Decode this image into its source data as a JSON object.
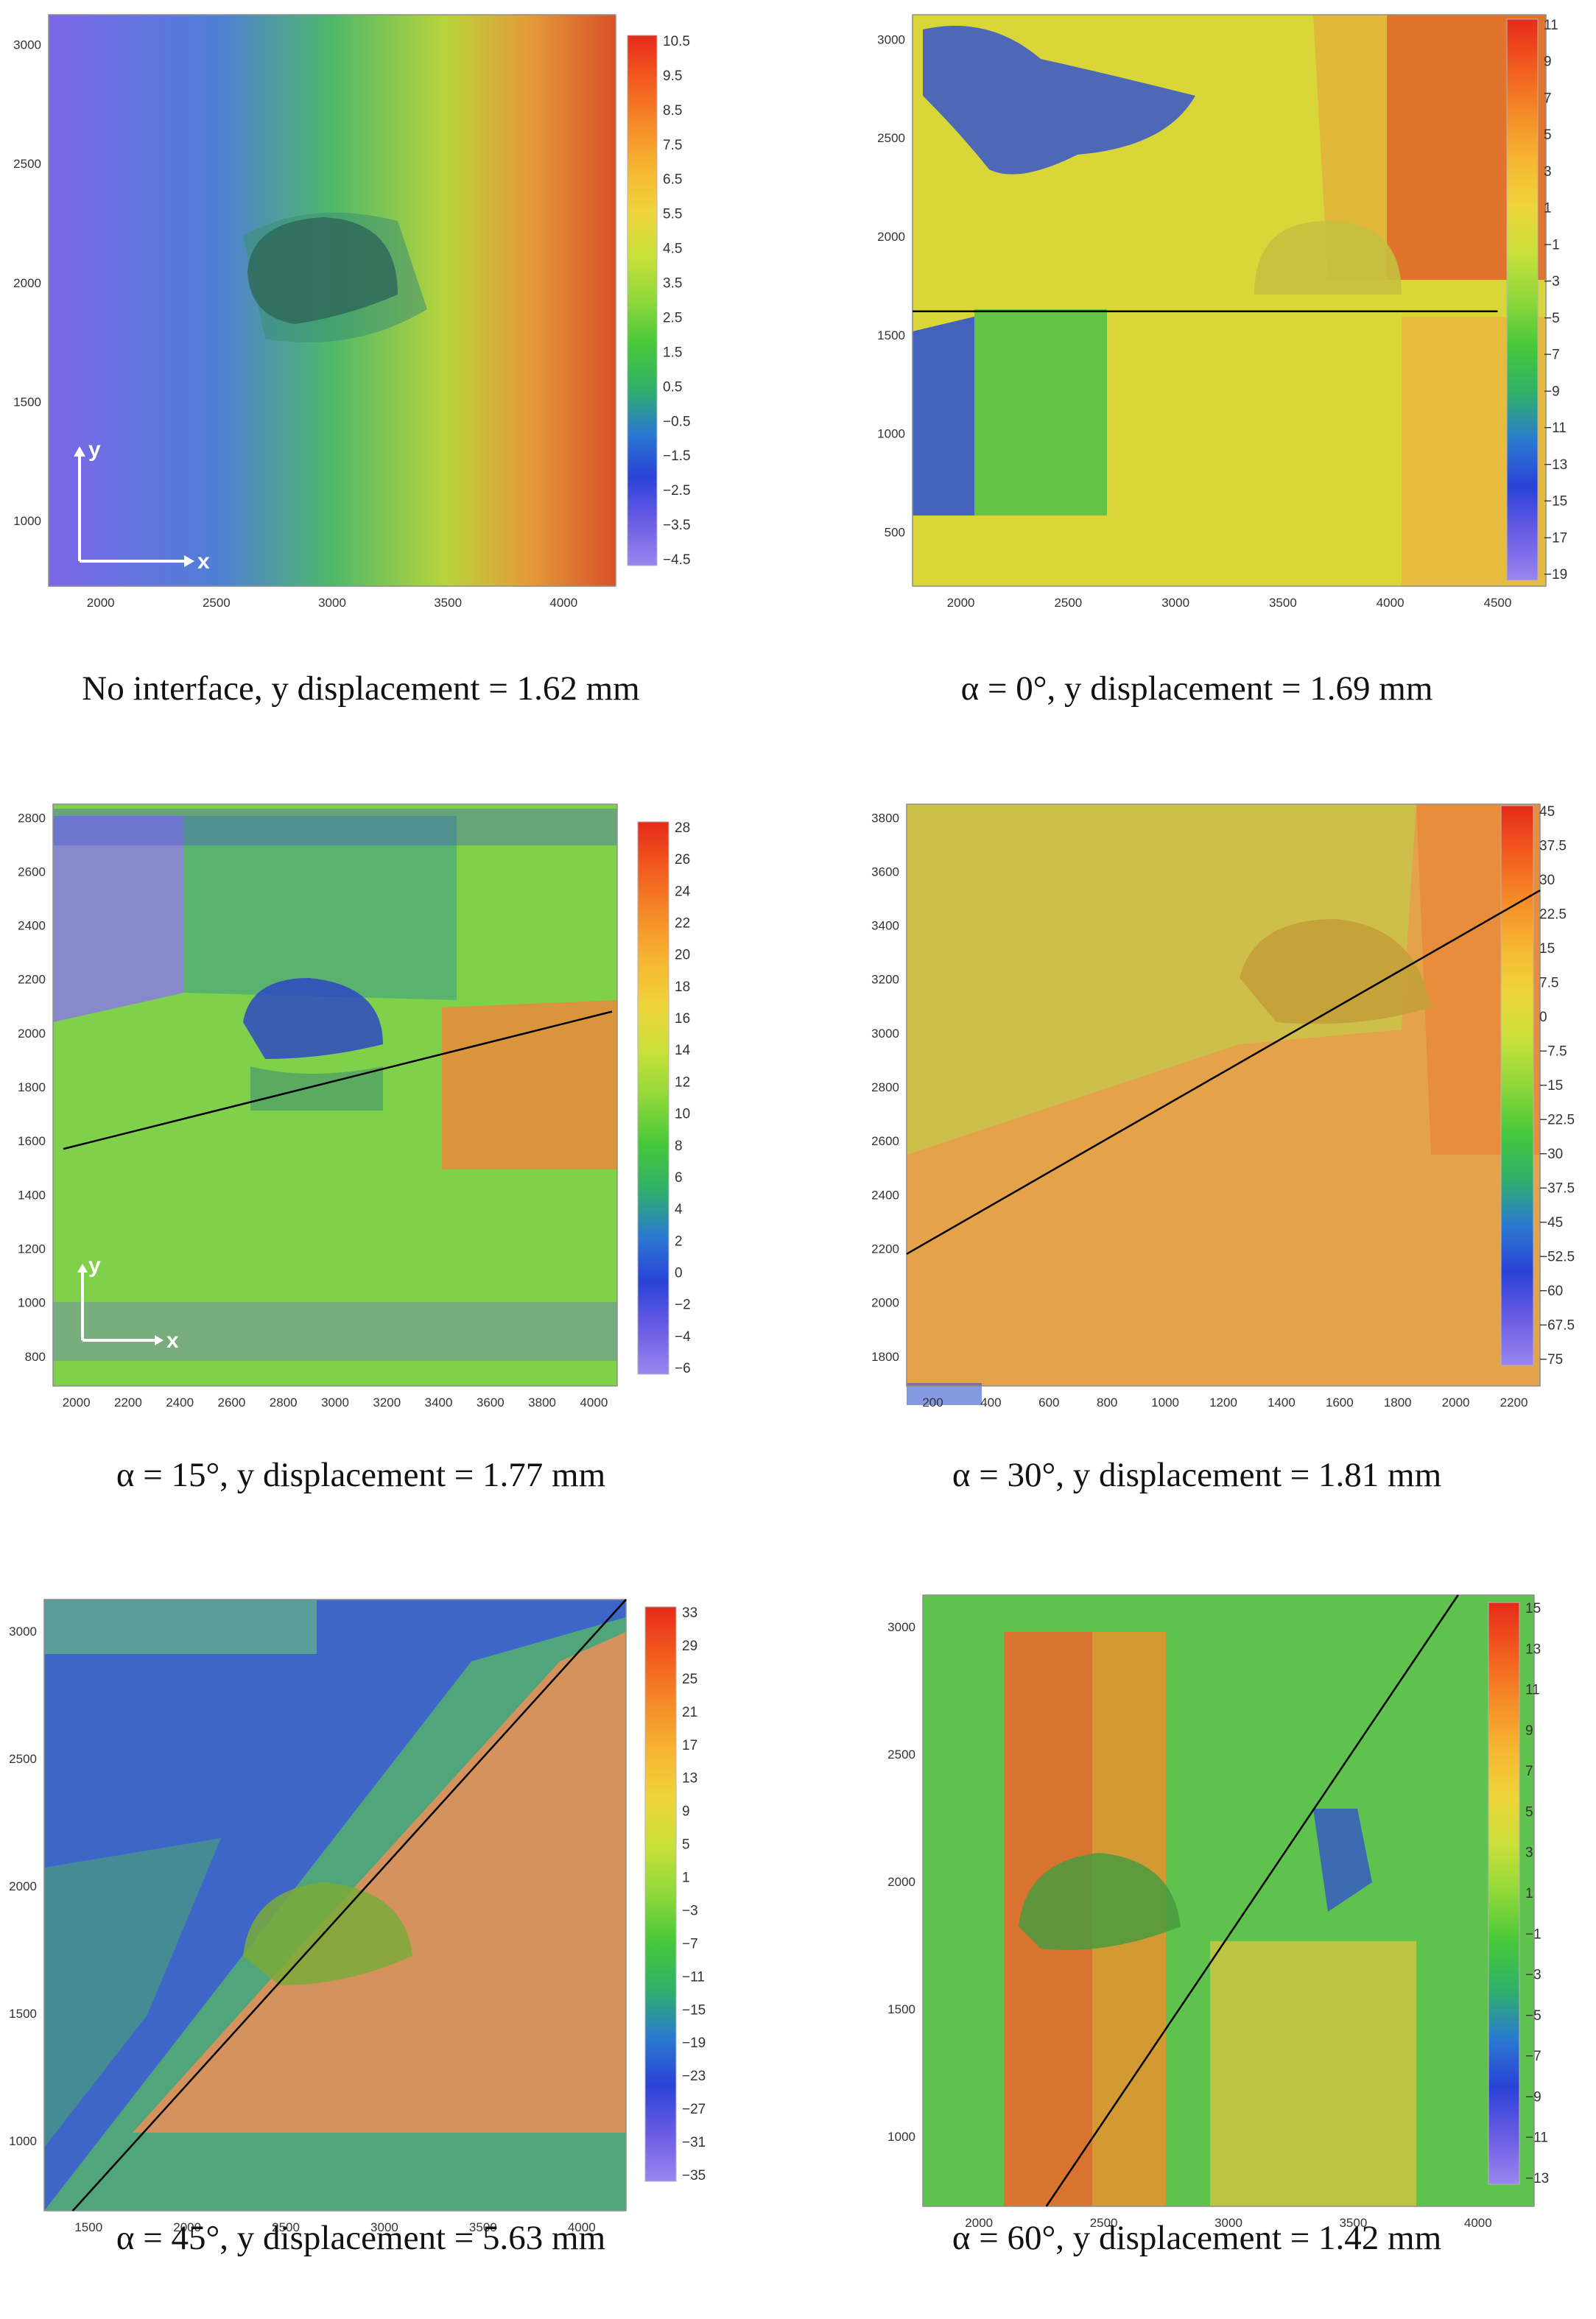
{
  "panels": [
    {
      "id": "no-interface",
      "caption": "No interface, y displacement = 1.62 mm",
      "chart_data": {
        "type": "heatmap",
        "xticks": [
          "2000",
          "2500",
          "3000",
          "3500",
          "4000"
        ],
        "yticks": [
          "1000",
          "1500",
          "2000",
          "2500",
          "3000"
        ],
        "colorbar_ticks": [
          "10.5",
          "9.5",
          "8.5",
          "7.5",
          "6.5",
          "5.5",
          "4.5",
          "3.5",
          "2.5",
          "1.5",
          "0.5",
          "−0.5",
          "−1.5",
          "−2.5",
          "−3.5",
          "−4.5"
        ],
        "colorbar_range": [
          -4.5,
          10.5
        ],
        "axis_arrows": {
          "x": "x",
          "y": "y"
        },
        "interface_line": null
      }
    },
    {
      "id": "alpha-0",
      "caption": "α = 0°, y displacement = 1.69 mm",
      "chart_data": {
        "type": "heatmap",
        "xticks": [
          "2000",
          "2500",
          "3000",
          "3500",
          "4000",
          "4500"
        ],
        "yticks": [
          "500",
          "1000",
          "1500",
          "2000",
          "2500",
          "3000"
        ],
        "colorbar_ticks": [
          "11",
          "9",
          "7",
          "5",
          "3",
          "1",
          "−1",
          "−3",
          "−5",
          "−7",
          "−9",
          "−11",
          "−13",
          "−15",
          "−17",
          "−19"
        ],
        "colorbar_range": [
          -19,
          11
        ],
        "interface_line": {
          "x": [
            1650,
            4500
          ],
          "y": [
            1620,
            1620
          ]
        }
      }
    },
    {
      "id": "alpha-15",
      "caption": "α = 15°, y displacement = 1.77 mm",
      "chart_data": {
        "type": "heatmap",
        "xticks": [
          "2000",
          "2200",
          "2400",
          "2600",
          "2800",
          "3000",
          "3200",
          "3400",
          "3600",
          "3800",
          "4000"
        ],
        "yticks": [
          "800",
          "1000",
          "1200",
          "1400",
          "1600",
          "1800",
          "2000",
          "2200",
          "2400",
          "2600",
          "2800"
        ],
        "colorbar_ticks": [
          "28",
          "26",
          "24",
          "22",
          "20",
          "18",
          "16",
          "14",
          "12",
          "10",
          "8",
          "6",
          "4",
          "2",
          "0",
          "−2",
          "−4",
          "−6"
        ],
        "colorbar_range": [
          -6,
          28
        ],
        "axis_arrows": {
          "x": "x",
          "y": "y"
        },
        "interface_line": {
          "x": [
            1950,
            4070
          ],
          "y": [
            1570,
            2080
          ]
        }
      }
    },
    {
      "id": "alpha-30",
      "caption": "α = 30°, y displacement = 1.81 mm",
      "chart_data": {
        "type": "heatmap",
        "xticks": [
          "200",
          "400",
          "600",
          "800",
          "1000",
          "1200",
          "1400",
          "1600",
          "1800",
          "2000",
          "2200"
        ],
        "yticks": [
          "1800",
          "2000",
          "2200",
          "2400",
          "2600",
          "2800",
          "3000",
          "3200",
          "3400",
          "3600",
          "3800"
        ],
        "colorbar_ticks": [
          "45",
          "37.5",
          "30",
          "22.5",
          "15",
          "7.5",
          "0",
          "−7.5",
          "−15",
          "−22.5",
          "−30",
          "−37.5",
          "−45",
          "−52.5",
          "−60",
          "−67.5",
          "−75"
        ],
        "colorbar_range": [
          -75,
          45
        ],
        "interface_line": {
          "x": [
            40,
            2360
          ],
          "y": [
            2180,
            3530
          ]
        }
      }
    },
    {
      "id": "alpha-45",
      "caption": "α = 45°, y displacement = 5.63 mm",
      "chart_data": {
        "type": "heatmap",
        "xticks": [
          "1500",
          "2000",
          "2500",
          "3000",
          "3500",
          "4000"
        ],
        "yticks": [
          "1000",
          "1500",
          "2000",
          "2500",
          "3000"
        ],
        "colorbar_ticks": [
          "33",
          "29",
          "25",
          "21",
          "17",
          "13",
          "9",
          "5",
          "1",
          "−3",
          "−7",
          "−11",
          "−15",
          "−19",
          "−23",
          "−27",
          "−31",
          "−35"
        ],
        "colorbar_range": [
          -35,
          33
        ],
        "interface_line": {
          "x": [
            1420,
            4340
          ],
          "y": [
            620,
            3360
          ]
        }
      }
    },
    {
      "id": "alpha-60",
      "caption": "α = 60°, y displacement = 1.42 mm",
      "chart_data": {
        "type": "heatmap",
        "xticks": [
          "2000",
          "2500",
          "3000",
          "3500",
          "4000"
        ],
        "yticks": [
          "1000",
          "1500",
          "2000",
          "2500",
          "3000"
        ],
        "colorbar_ticks": [
          "15",
          "13",
          "11",
          "9",
          "7",
          "5",
          "3",
          "1",
          "−1",
          "−3",
          "−5",
          "−7",
          "−9",
          "−11",
          "−13"
        ],
        "colorbar_range": [
          -13,
          15
        ],
        "interface_line": {
          "x": [
            2270,
            3920
          ],
          "y": [
            600,
            3300
          ]
        }
      }
    }
  ]
}
